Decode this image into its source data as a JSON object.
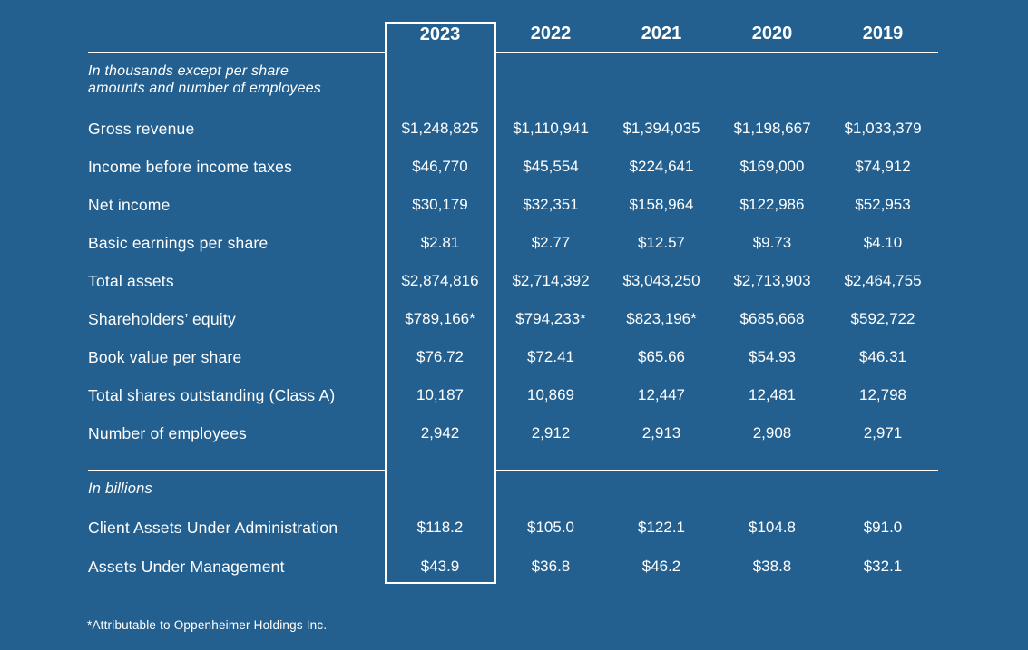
{
  "page": {
    "background_color": "#24608F",
    "text_color": "#FFFFFF",
    "highlight_box_border_color": "#FFFFFF"
  },
  "table": {
    "years": [
      "2023",
      "2022",
      "2021",
      "2020",
      "2019"
    ],
    "highlighted_year": "2023",
    "unit_note_line1": "In thousands except per share",
    "unit_note_line2": "amounts and number of employees",
    "rows": [
      {
        "label": "Gross revenue",
        "values": [
          "$1,248,825",
          "$1,110,941",
          "$1,394,035",
          "$1,198,667",
          "$1,033,379"
        ]
      },
      {
        "label": "Income before income taxes",
        "values": [
          "$46,770",
          "$45,554",
          "$224,641",
          "$169,000",
          "$74,912"
        ]
      },
      {
        "label": "Net income",
        "values": [
          "$30,179",
          "$32,351",
          "$158,964",
          "$122,986",
          "$52,953"
        ]
      },
      {
        "label": "Basic earnings per share",
        "values": [
          "$2.81",
          "$2.77",
          "$12.57",
          "$9.73",
          "$4.10"
        ]
      },
      {
        "label": "Total assets",
        "values": [
          "$2,874,816",
          "$2,714,392",
          "$3,043,250",
          "$2,713,903",
          "$2,464,755"
        ]
      },
      {
        "label": "Shareholders’ equity",
        "values": [
          "$789,166*",
          "$794,233*",
          "$823,196*",
          "$685,668",
          "$592,722"
        ]
      },
      {
        "label": "Book value per share",
        "values": [
          "$76.72",
          "$72.41",
          "$65.66",
          "$54.93",
          "$46.31"
        ]
      },
      {
        "label": "Total shares outstanding (Class A)",
        "values": [
          "10,187",
          "10,869",
          "12,447",
          "12,481",
          "12,798"
        ]
      },
      {
        "label": "Number of employees",
        "values": [
          "2,942",
          "2,912",
          "2,913",
          "2,908",
          "2,971"
        ]
      }
    ],
    "billions_section_label": "In billions",
    "billions_rows": [
      {
        "label": "Client Assets Under Administration",
        "values": [
          "$118.2",
          "$105.0",
          "$122.1",
          "$104.8",
          "$91.0"
        ]
      },
      {
        "label": "Assets Under Management",
        "values": [
          "$43.9",
          "$36.8",
          "$46.2",
          "$38.8",
          "$32.1"
        ]
      }
    ]
  },
  "footnote": "*Attributable to Oppenheimer Holdings Inc."
}
